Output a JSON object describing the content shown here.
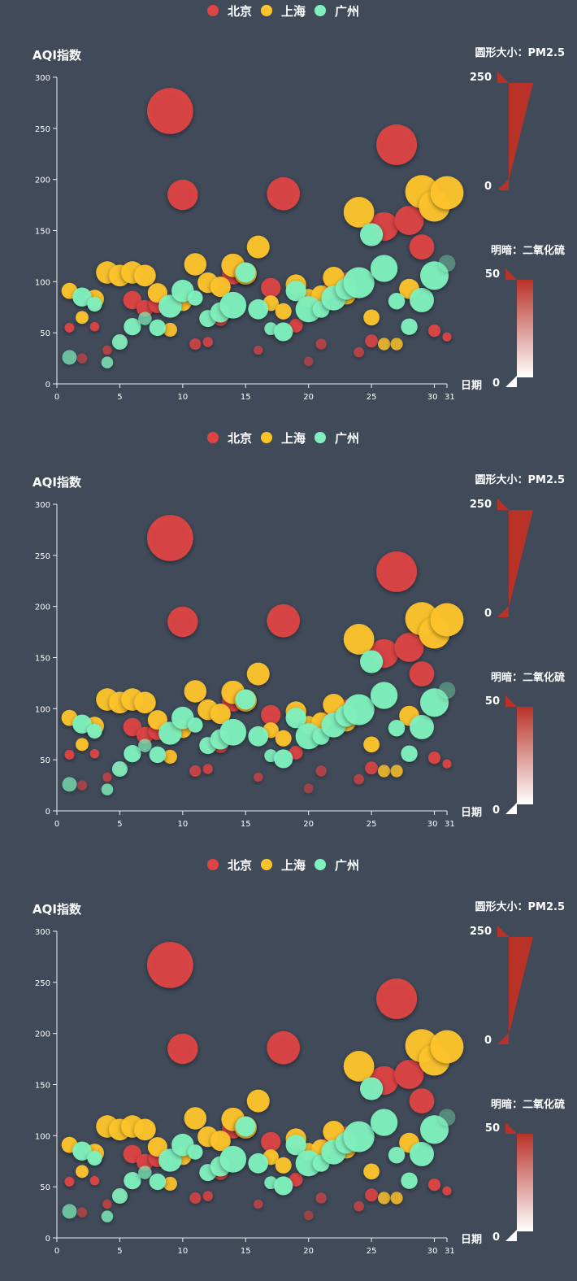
{
  "colors": {
    "background": "#404a59",
    "beijing": "#dd4444",
    "shanghai": "#fec42c",
    "guangzhou": "#80f1be",
    "size_visual": "#b83228"
  },
  "chart_data": {
    "type": "scatter",
    "subtype": "bubble",
    "repeat_count": 3,
    "legend": {
      "position": "top-center",
      "items": [
        "北京",
        "上海",
        "广州"
      ]
    },
    "ylabel": "AQI指数",
    "xlabel": "日期",
    "x_ticks": [
      0,
      5,
      10,
      15,
      20,
      25,
      30,
      31
    ],
    "y_ticks": [
      0,
      50,
      100,
      150,
      200,
      250,
      300
    ],
    "xlim": [
      0,
      31
    ],
    "ylim": [
      0,
      300
    ],
    "size_visual": {
      "title": "圆形大小：PM2.5",
      "max_label": "250",
      "min_label": "0"
    },
    "opacity_visual": {
      "title": "明暗：二氧化硫",
      "max_label": "50",
      "min_label": "0"
    },
    "series": [
      {
        "name": "北京",
        "points": [
          [
            1,
            55,
            9,
            56
          ],
          [
            2,
            25,
            11,
            21
          ],
          [
            3,
            56,
            7,
            63
          ],
          [
            4,
            33,
            7,
            29
          ],
          [
            5,
            42,
            24,
            44
          ],
          [
            6,
            82,
            58,
            90
          ],
          [
            7,
            74,
            49,
            77
          ],
          [
            8,
            78,
            55,
            80
          ],
          [
            9,
            267,
            216,
            280
          ],
          [
            10,
            185,
            127,
            216
          ],
          [
            11,
            39,
            19,
            38
          ],
          [
            12,
            41,
            11,
            40
          ],
          [
            13,
            64,
            38,
            74
          ],
          [
            14,
            108,
            79,
            120
          ],
          [
            15,
            108,
            63,
            116
          ],
          [
            16,
            33,
            6,
            29
          ],
          [
            17,
            94,
            66,
            110
          ],
          [
            18,
            186,
            142,
            192
          ],
          [
            19,
            57,
            31,
            54
          ],
          [
            20,
            22,
            8,
            17
          ],
          [
            21,
            39,
            15,
            27
          ],
          [
            22,
            94,
            69,
            114
          ],
          [
            23,
            99,
            73,
            110
          ],
          [
            24,
            31,
            12,
            30
          ],
          [
            25,
            42,
            27,
            43
          ],
          [
            26,
            154,
            117,
            157
          ],
          [
            27,
            234,
            185,
            230
          ],
          [
            28,
            160,
            120,
            186
          ],
          [
            29,
            134,
            96,
            165
          ],
          [
            30,
            52,
            24,
            60
          ],
          [
            31,
            46,
            5,
            49
          ]
        ]
      },
      {
        "name": "上海",
        "points": [
          [
            1,
            91,
            45,
            125
          ],
          [
            2,
            65,
            27,
            78
          ],
          [
            3,
            83,
            60,
            84
          ],
          [
            4,
            109,
            81,
            121
          ],
          [
            5,
            106,
            77,
            114
          ],
          [
            6,
            109,
            81,
            121
          ],
          [
            7,
            106,
            77,
            114
          ],
          [
            8,
            89,
            65,
            78
          ],
          [
            9,
            53,
            33,
            47
          ],
          [
            10,
            80,
            55,
            80
          ],
          [
            11,
            117,
            81,
            124
          ],
          [
            12,
            99,
            71,
            142
          ],
          [
            13,
            95,
            69,
            130
          ],
          [
            14,
            116,
            87,
            131
          ],
          [
            15,
            108,
            80,
            121
          ],
          [
            16,
            134,
            83,
            167
          ],
          [
            17,
            79,
            43,
            107
          ],
          [
            18,
            71,
            46,
            89
          ],
          [
            19,
            97,
            71,
            113
          ],
          [
            20,
            84,
            57,
            91
          ],
          [
            21,
            87,
            63,
            101
          ],
          [
            22,
            104,
            77,
            119
          ],
          [
            23,
            87,
            62,
            100
          ],
          [
            24,
            168,
            128,
            172
          ],
          [
            25,
            65,
            45,
            51
          ],
          [
            26,
            39,
            24,
            38
          ],
          [
            27,
            39,
            24,
            38
          ],
          [
            28,
            93,
            68,
            96
          ],
          [
            29,
            188,
            143,
            197
          ],
          [
            30,
            174,
            131,
            174
          ],
          [
            31,
            187,
            143,
            201
          ]
        ]
      },
      {
        "name": "广州",
        "points": [
          [
            1,
            26,
            37,
            27
          ],
          [
            2,
            85,
            62,
            71
          ],
          [
            3,
            78,
            38,
            74
          ],
          [
            4,
            21,
            21,
            36
          ],
          [
            5,
            41,
            42,
            46
          ],
          [
            6,
            56,
            52,
            69
          ],
          [
            7,
            64,
            30,
            28
          ],
          [
            8,
            55,
            48,
            74
          ],
          [
            9,
            76,
            85,
            113
          ],
          [
            10,
            91,
            81,
            104
          ],
          [
            11,
            84,
            39,
            60
          ],
          [
            12,
            64,
            51,
            101
          ],
          [
            13,
            70,
            69,
            120
          ],
          [
            14,
            77,
            105,
            178
          ],
          [
            15,
            109,
            68,
            87
          ],
          [
            16,
            73,
            68,
            97
          ],
          [
            17,
            54,
            27,
            47
          ],
          [
            18,
            51,
            61,
            97
          ],
          [
            19,
            91,
            71,
            121
          ],
          [
            20,
            73,
            102,
            182
          ],
          [
            21,
            73,
            50,
            76
          ],
          [
            22,
            84,
            94,
            140
          ],
          [
            23,
            93,
            77,
            104
          ],
          [
            24,
            99,
            130,
            227
          ],
          [
            25,
            146,
            84,
            139
          ],
          [
            26,
            113,
            108,
            137
          ],
          [
            27,
            81,
            48,
            62
          ],
          [
            28,
            56,
            48,
            68
          ],
          [
            29,
            82,
            92,
            174
          ],
          [
            30,
            106,
            116,
            188
          ],
          [
            31,
            118,
            50,
            0
          ]
        ]
      }
    ]
  }
}
